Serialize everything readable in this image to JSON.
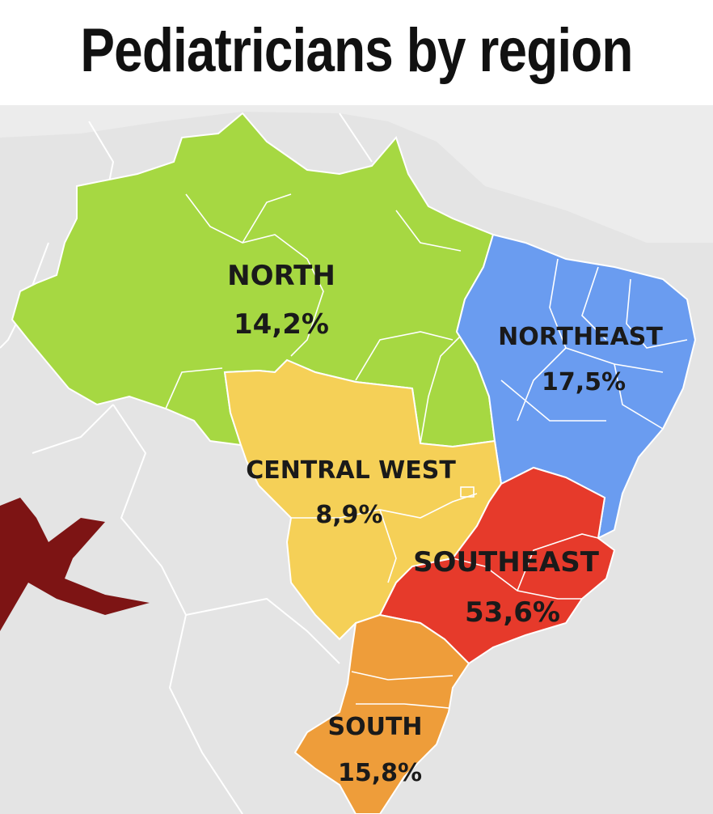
{
  "title": "Pediatricians by region",
  "regions": [
    {
      "id": "north",
      "name": "NORTH",
      "value": "14,2%",
      "color": "#a6d842"
    },
    {
      "id": "northeast",
      "name": "NORTHEAST",
      "value": "17,5%",
      "color": "#6a9cf0"
    },
    {
      "id": "central_west",
      "name": "CENTRAL WEST",
      "value": "8,9%",
      "color": "#f5d057"
    },
    {
      "id": "southeast",
      "name": "SOUTHEAST",
      "value": "53,6%",
      "color": "#e63a2b"
    },
    {
      "id": "south",
      "name": "SOUTH",
      "value": "15,8%",
      "color": "#ee9d3a"
    }
  ],
  "colors": {
    "background_land": "#e3e3e3",
    "border": "#ffffff",
    "mark": "#7d1414"
  }
}
